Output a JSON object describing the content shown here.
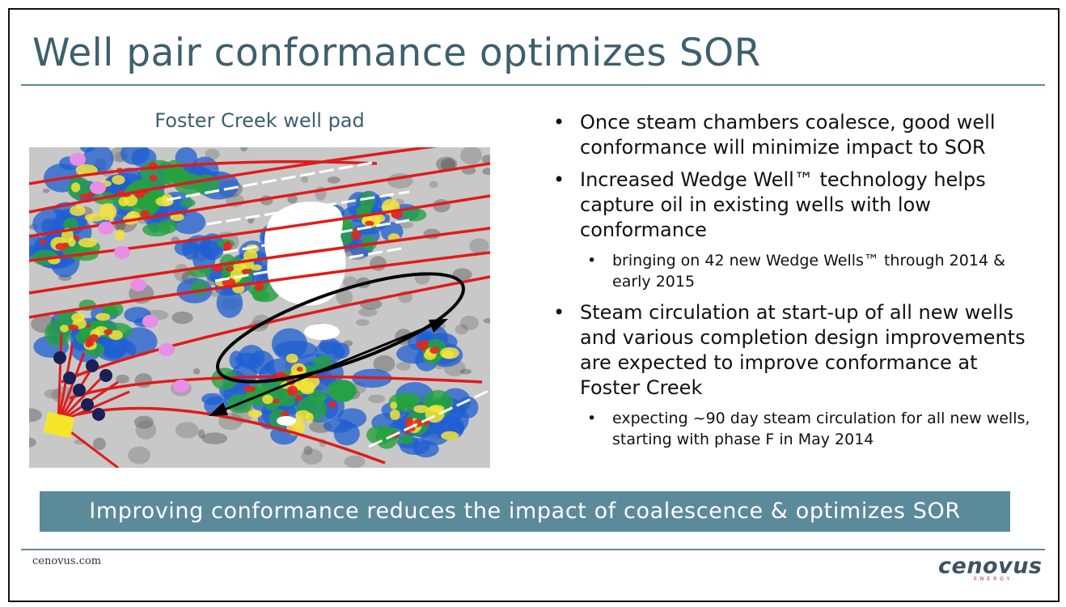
{
  "slide": {
    "title": "Well pair conformance optimizes SOR"
  },
  "figure": {
    "caption": "Foster Creek well pad",
    "colors": {
      "background": "#c8c8c8",
      "well_line": "#e01b1b",
      "well_dot": "#e98ee6",
      "wellhead": "#1a1f57",
      "pad": "#f5e62a",
      "heat_low": "#1f5fd1",
      "heat_mid": "#26a33f",
      "heat_high": "#f5e33a",
      "heat_peak": "#e6261e",
      "chamber": "#ffffff"
    }
  },
  "bullets": [
    {
      "level": 1,
      "text": "Once steam chambers coalesce, good well conformance will minimize impact to SOR"
    },
    {
      "level": 1,
      "text": "Increased Wedge Well™ technology helps capture oil in existing wells with low conformance"
    },
    {
      "level": 2,
      "text": "bringing on 42 new Wedge Wells™ through 2014 & early 2015"
    },
    {
      "level": 1,
      "text": "Steam circulation at start-up of all new wells and various completion design improvements are expected to improve conformance at Foster Creek"
    },
    {
      "level": 2,
      "text": "expecting ~90 day steam circulation for all new wells, starting with phase F in May 2014"
    }
  ],
  "banner": {
    "text": "Improving conformance reduces the impact of coalescence & optimizes SOR"
  },
  "footer": {
    "url": "cenovus.com",
    "logo_text": "cenovus",
    "logo_subtext": "ENERGY"
  }
}
